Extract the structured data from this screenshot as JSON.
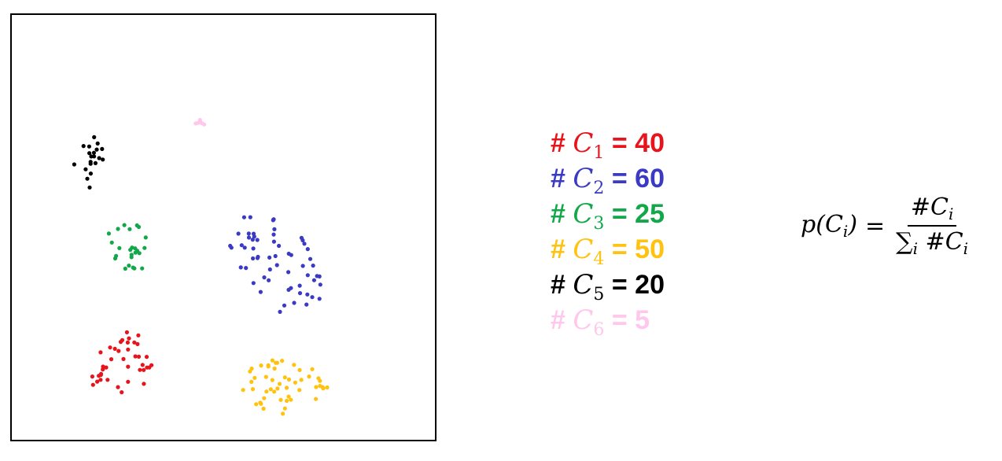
{
  "clusters": [
    {
      "id": "C1",
      "hash": "#",
      "var": "C",
      "sub": "1",
      "eq": "=",
      "count": "40",
      "color": "#e8141c"
    },
    {
      "id": "C2",
      "hash": "#",
      "var": "C",
      "sub": "2",
      "eq": "=",
      "count": "60",
      "color": "#3a3ac4"
    },
    {
      "id": "C3",
      "hash": "#",
      "var": "C",
      "sub": "3",
      "eq": "=",
      "count": "25",
      "color": "#12a84a"
    },
    {
      "id": "C4",
      "hash": "#",
      "var": "C",
      "sub": "4",
      "eq": "=",
      "count": "50",
      "color": "#ffc20e"
    },
    {
      "id": "C5",
      "hash": "#",
      "var": "C",
      "sub": "5",
      "eq": "=",
      "count": "20",
      "color": "#000000"
    },
    {
      "id": "C6",
      "hash": "#",
      "var": "C",
      "sub": "6",
      "eq": "=",
      "count": "5",
      "color": "#ffc7ec"
    }
  ],
  "formula": {
    "lhs_func": "p",
    "lhs_var": "C",
    "lhs_sub": "i",
    "eq": "=",
    "num_hash": "#",
    "num_var": "C",
    "num_sub": "i",
    "den_sum": "∑",
    "den_sum_sub": "i",
    "den_hash": "#",
    "den_var": "C",
    "den_sub": "i"
  }
}
